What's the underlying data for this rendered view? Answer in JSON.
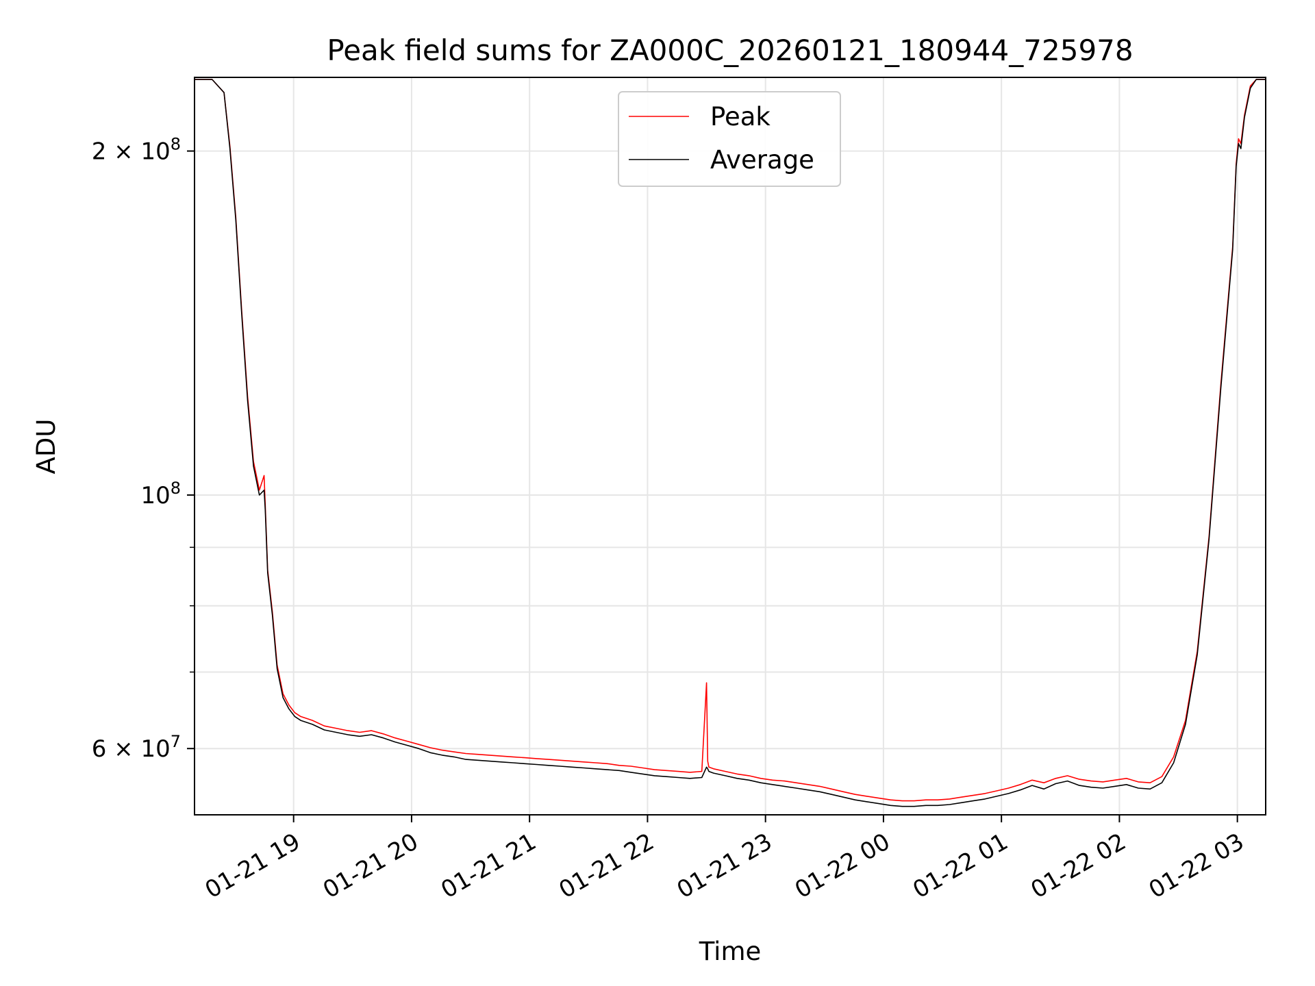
{
  "chart_data": {
    "type": "line",
    "title": "Peak field sums for ZA000C_20260121_180944_725978",
    "xlabel": "Time",
    "ylabel": "ADU",
    "yscale": "log",
    "grid": true,
    "legend_position": "top-center",
    "xlim_hours": [
      0.0,
      9.08
    ],
    "ylim": [
      52500000,
      232000000
    ],
    "x_ticks": [
      {
        "hour": 0.84,
        "label": "01-21 19"
      },
      {
        "hour": 1.84,
        "label": "01-21 20"
      },
      {
        "hour": 2.84,
        "label": "01-21 21"
      },
      {
        "hour": 3.84,
        "label": "01-21 22"
      },
      {
        "hour": 4.84,
        "label": "01-21 23"
      },
      {
        "hour": 5.84,
        "label": "01-22 00"
      },
      {
        "hour": 6.84,
        "label": "01-22 01"
      },
      {
        "hour": 7.84,
        "label": "01-22 02"
      },
      {
        "hour": 8.84,
        "label": "01-22 03"
      }
    ],
    "y_ticks": [
      {
        "value": 200000000,
        "base": "2 × 10",
        "exp": "8"
      },
      {
        "value": 100000000,
        "base": "10",
        "exp": "8"
      },
      {
        "value": 60000000,
        "base": "6 × 10",
        "exp": "7"
      }
    ],
    "y_minor_ticks": [
      70000000,
      80000000,
      90000000
    ],
    "series": [
      {
        "name": "Peak",
        "color": "#ff0000",
        "x": [
          0.0,
          0.15,
          0.25,
          0.3,
          0.35,
          0.4,
          0.45,
          0.5,
          0.55,
          0.59,
          0.6,
          0.62,
          0.66,
          0.7,
          0.75,
          0.8,
          0.85,
          0.9,
          1.0,
          1.1,
          1.2,
          1.3,
          1.4,
          1.5,
          1.6,
          1.7,
          1.8,
          1.9,
          2.0,
          2.1,
          2.2,
          2.3,
          2.4,
          2.5,
          2.6,
          2.7,
          2.8,
          2.9,
          3.0,
          3.1,
          3.2,
          3.3,
          3.4,
          3.5,
          3.6,
          3.7,
          3.8,
          3.9,
          4.0,
          4.1,
          4.2,
          4.3,
          4.34,
          4.35,
          4.36,
          4.4,
          4.5,
          4.6,
          4.7,
          4.8,
          4.9,
          5.0,
          5.1,
          5.2,
          5.3,
          5.4,
          5.5,
          5.6,
          5.7,
          5.8,
          5.9,
          6.0,
          6.1,
          6.2,
          6.3,
          6.4,
          6.5,
          6.6,
          6.7,
          6.8,
          6.9,
          7.0,
          7.1,
          7.2,
          7.3,
          7.4,
          7.5,
          7.6,
          7.7,
          7.8,
          7.9,
          8.0,
          8.1,
          8.2,
          8.3,
          8.4,
          8.5,
          8.6,
          8.7,
          8.8,
          8.83,
          8.85,
          8.87,
          8.9,
          8.95,
          9.0,
          9.08
        ],
        "values": [
          231000000,
          231000000,
          225000000,
          202000000,
          175000000,
          145000000,
          122000000,
          107000000,
          101000000,
          104000000,
          98000000,
          86000000,
          79000000,
          71000000,
          67000000,
          65500000,
          64500000,
          64000000,
          63500000,
          62800000,
          62500000,
          62200000,
          62000000,
          62200000,
          61800000,
          61300000,
          60900000,
          60500000,
          60100000,
          59800000,
          59600000,
          59400000,
          59300000,
          59200000,
          59100000,
          59000000,
          58900000,
          58800000,
          58700000,
          58600000,
          58500000,
          58400000,
          58300000,
          58200000,
          58000000,
          57900000,
          57700000,
          57500000,
          57400000,
          57300000,
          57200000,
          57300000,
          68500000,
          58500000,
          57800000,
          57600000,
          57300000,
          57000000,
          56800000,
          56500000,
          56300000,
          56200000,
          56000000,
          55800000,
          55600000,
          55300000,
          55000000,
          54700000,
          54500000,
          54300000,
          54100000,
          54000000,
          54000000,
          54100000,
          54100000,
          54200000,
          54400000,
          54600000,
          54800000,
          55100000,
          55400000,
          55800000,
          56300000,
          56000000,
          56500000,
          56800000,
          56400000,
          56200000,
          56100000,
          56300000,
          56500000,
          56100000,
          56000000,
          56700000,
          59000000,
          63500000,
          73000000,
          92000000,
          125000000,
          165000000,
          195000000,
          205000000,
          203000000,
          215000000,
          228000000,
          231000000,
          231000000
        ]
      },
      {
        "name": "Average",
        "color": "#000000",
        "x": [
          0.0,
          0.15,
          0.25,
          0.3,
          0.35,
          0.4,
          0.45,
          0.5,
          0.55,
          0.59,
          0.6,
          0.62,
          0.66,
          0.7,
          0.75,
          0.8,
          0.85,
          0.9,
          1.0,
          1.1,
          1.2,
          1.3,
          1.4,
          1.5,
          1.6,
          1.7,
          1.8,
          1.9,
          2.0,
          2.1,
          2.2,
          2.3,
          2.4,
          2.5,
          2.6,
          2.7,
          2.8,
          2.9,
          3.0,
          3.1,
          3.2,
          3.3,
          3.4,
          3.5,
          3.6,
          3.7,
          3.8,
          3.9,
          4.0,
          4.1,
          4.2,
          4.3,
          4.34,
          4.35,
          4.36,
          4.4,
          4.5,
          4.6,
          4.7,
          4.8,
          4.9,
          5.0,
          5.1,
          5.2,
          5.3,
          5.4,
          5.5,
          5.6,
          5.7,
          5.8,
          5.9,
          6.0,
          6.1,
          6.2,
          6.3,
          6.4,
          6.5,
          6.6,
          6.7,
          6.8,
          6.9,
          7.0,
          7.1,
          7.2,
          7.3,
          7.4,
          7.5,
          7.6,
          7.7,
          7.8,
          7.9,
          8.0,
          8.1,
          8.2,
          8.3,
          8.4,
          8.5,
          8.6,
          8.7,
          8.8,
          8.83,
          8.85,
          8.87,
          8.9,
          8.95,
          9.0,
          9.08
        ],
        "values": [
          231000000,
          231000000,
          225000000,
          201000000,
          174000000,
          144000000,
          121000000,
          106000000,
          100000000,
          101000000,
          97000000,
          85500000,
          78500000,
          70500000,
          66500000,
          65000000,
          64000000,
          63500000,
          63000000,
          62300000,
          62000000,
          61700000,
          61500000,
          61700000,
          61300000,
          60800000,
          60400000,
          60000000,
          59500000,
          59200000,
          59000000,
          58700000,
          58600000,
          58500000,
          58400000,
          58300000,
          58200000,
          58100000,
          58000000,
          57900000,
          57800000,
          57700000,
          57600000,
          57500000,
          57400000,
          57200000,
          57000000,
          56800000,
          56700000,
          56600000,
          56500000,
          56600000,
          57800000,
          57600000,
          57300000,
          57100000,
          56800000,
          56500000,
          56300000,
          56000000,
          55800000,
          55600000,
          55400000,
          55200000,
          55000000,
          54700000,
          54400000,
          54100000,
          53900000,
          53700000,
          53500000,
          53400000,
          53400000,
          53500000,
          53500000,
          53600000,
          53800000,
          54000000,
          54200000,
          54500000,
          54800000,
          55200000,
          55700000,
          55300000,
          55900000,
          56200000,
          55700000,
          55500000,
          55400000,
          55600000,
          55800000,
          55400000,
          55300000,
          56000000,
          58300000,
          63000000,
          72500000,
          91500000,
          124000000,
          164000000,
          194000000,
          203000000,
          201000000,
          214000000,
          227000000,
          231000000,
          231000000
        ]
      }
    ]
  }
}
